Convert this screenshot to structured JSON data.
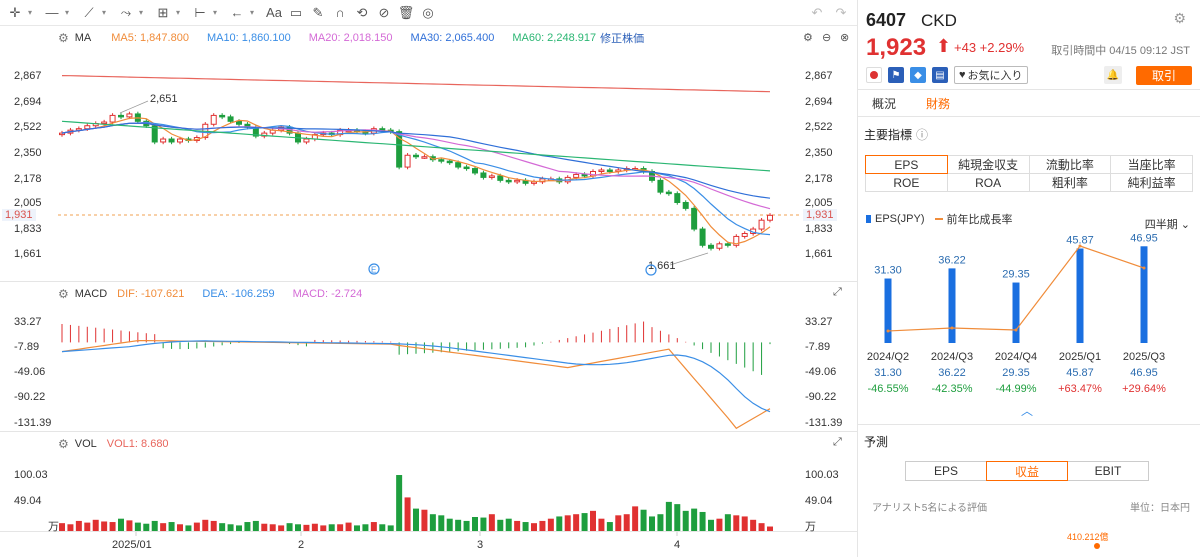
{
  "toolbar": {
    "tools": [
      "crosshair-icon",
      "line-icon",
      "trend-icon",
      "fib-icon",
      "measure-icon",
      "range-icon",
      "arrow-icon",
      "text-icon",
      "comment-icon",
      "pen-icon",
      "magnet-icon",
      "lock-icon",
      "hide-icon",
      "delete-icon",
      "eye-icon"
    ]
  },
  "main_chart": {
    "indicator": "MA",
    "ma5": "MA5: 1,847.800",
    "ma10": "MA10: 1,860.100",
    "ma20": "MA20: 2,018.150",
    "ma30": "MA30: 2,065.400",
    "ma60": "MA60: 2,248.917",
    "adjust_label": "修正株価",
    "y_ticks": [
      "2,867",
      "2,694",
      "2,522",
      "2,350",
      "2,178",
      "2,005",
      "1,931",
      "1,833",
      "1,661"
    ],
    "price_tag": "1,931",
    "high_label": "2,651",
    "low_label": "1,661",
    "event_marker": "E"
  },
  "macd_panel": {
    "name": "MACD",
    "dif": "DIF: -107.621",
    "dea": "DEA: -106.259",
    "macd": "MACD: -2.724",
    "y_ticks": [
      "33.27",
      "-7.89",
      "-49.06",
      "-90.22",
      "-131.39"
    ]
  },
  "vol_panel": {
    "name": "VOL",
    "vol1": "VOL1: 8.680",
    "y_ticks": [
      "100.03",
      "49.04",
      "万"
    ]
  },
  "x_axis": [
    "2025/01",
    "2",
    "3",
    "4"
  ],
  "colors": {
    "up": "#e03131",
    "down": "#1e9e3e",
    "ma5": "#f08c3a",
    "ma10": "#3a8ee6",
    "ma20": "#d46ad6",
    "ma30": "#2f6fd8",
    "ma60": "#2bb673",
    "ma_long": "#e8655c",
    "accent": "#ff6a00"
  },
  "stock": {
    "code": "6407",
    "name": "CKD",
    "price": "1,923",
    "change": "+43 +2.29%",
    "time": "取引時間中 04/15 09:12 JST",
    "favorite": "お気に入り",
    "trade": "取引"
  },
  "tabs": [
    "概況",
    "財務"
  ],
  "key_metrics": {
    "title": "主要指標",
    "cells": [
      "EPS",
      "純現金収支",
      "流動比率",
      "当座比率",
      "ROE",
      "ROA",
      "粗利率",
      "純利益率"
    ]
  },
  "eps_chart": {
    "legend_eps": "EPS(JPY)",
    "legend_growth": "前年比成長率",
    "period": "四半期",
    "chart_data": {
      "type": "bar",
      "categories": [
        "2024/Q2",
        "2024/Q3",
        "2024/Q4",
        "2025/Q1",
        "2025/Q3"
      ],
      "series": [
        {
          "name": "EPS(JPY)",
          "values": [
            31.3,
            36.22,
            29.35,
            45.87,
            46.95
          ]
        },
        {
          "name": "前年比成長率",
          "values": [
            -46.55,
            -42.35,
            -44.99,
            63.47,
            29.64
          ]
        }
      ],
      "eps_labels": [
        "31.30",
        "36.22",
        "29.35",
        "45.87",
        "46.95"
      ],
      "growth_labels": [
        "-46.55%",
        "-42.35%",
        "-44.99%",
        "+63.47%",
        "+29.64%"
      ]
    }
  },
  "forecast": {
    "title": "予測",
    "tabs": [
      "EPS",
      "収益",
      "EBIT"
    ],
    "analyst": "アナリスト5名による評価",
    "unit": "単位：日本円",
    "value": "410.212億"
  }
}
